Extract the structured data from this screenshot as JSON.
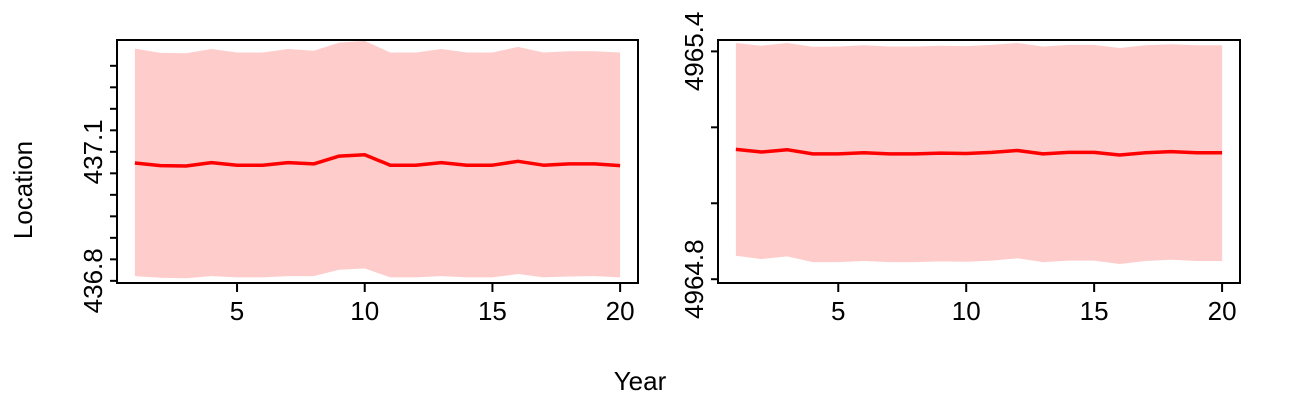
{
  "figure": {
    "xlabel": "Year",
    "ylabel": "Location"
  },
  "colors": {
    "line": "#ff0000",
    "band": "#ffcccc",
    "axis": "#000000"
  },
  "chart_data": [
    {
      "type": "line",
      "x": [
        1,
        2,
        3,
        4,
        5,
        6,
        7,
        8,
        9,
        10,
        11,
        12,
        13,
        14,
        15,
        16,
        17,
        18,
        19,
        20
      ],
      "series": [
        {
          "values": [
            437.074,
            437.068,
            437.067,
            437.075,
            437.069,
            437.069,
            437.075,
            437.072,
            437.09,
            437.093,
            437.069,
            437.069,
            437.075,
            437.069,
            437.069,
            437.078,
            437.069,
            437.072,
            437.072,
            437.068
          ],
          "lower": [
            436.811,
            436.807,
            436.806,
            436.811,
            436.808,
            436.808,
            436.811,
            436.811,
            436.826,
            436.829,
            436.808,
            436.808,
            436.811,
            436.808,
            436.808,
            436.816,
            436.808,
            436.81,
            436.811,
            436.808
          ],
          "upper": [
            437.34,
            437.33,
            437.329,
            437.339,
            437.331,
            437.331,
            437.339,
            437.335,
            437.354,
            437.358,
            437.331,
            437.331,
            437.339,
            437.331,
            437.331,
            437.344,
            437.331,
            437.334,
            437.334,
            437.331
          ]
        }
      ],
      "xticks": [
        5,
        10,
        15,
        20
      ],
      "yticks": [
        436.8,
        436.85,
        436.9,
        436.95,
        437.0,
        437.05,
        437.1,
        437.15,
        437.2,
        437.25,
        437.3
      ],
      "ytick_labels": [
        {
          "value": 436.8,
          "label": "436.8"
        },
        {
          "value": 437.1,
          "label": "437.1"
        }
      ],
      "xlim": [
        0.3,
        20.7
      ],
      "ylim": [
        436.795,
        437.36
      ],
      "grid": false
    },
    {
      "type": "line",
      "x": [
        1,
        2,
        3,
        4,
        5,
        6,
        7,
        8,
        9,
        10,
        11,
        12,
        13,
        14,
        15,
        16,
        17,
        18,
        19,
        20
      ],
      "series": [
        {
          "values": [
            4965.142,
            4965.135,
            4965.141,
            4965.13,
            4965.13,
            4965.133,
            4965.13,
            4965.13,
            4965.132,
            4965.131,
            4965.134,
            4965.139,
            4965.13,
            4965.134,
            4965.134,
            4965.127,
            4965.133,
            4965.136,
            4965.133,
            4965.133
          ],
          "lower": [
            4964.862,
            4964.853,
            4964.86,
            4964.845,
            4964.845,
            4964.848,
            4964.845,
            4964.845,
            4964.847,
            4964.846,
            4964.849,
            4964.855,
            4964.845,
            4964.849,
            4964.849,
            4964.84,
            4964.848,
            4964.851,
            4964.848,
            4964.848
          ],
          "upper": [
            4965.422,
            4965.415,
            4965.422,
            4965.412,
            4965.413,
            4965.416,
            4965.413,
            4965.413,
            4965.415,
            4965.414,
            4965.417,
            4965.422,
            4965.413,
            4965.417,
            4965.417,
            4965.409,
            4965.416,
            4965.419,
            4965.416,
            4965.416
          ]
        }
      ],
      "xticks": [
        5,
        10,
        15,
        20
      ],
      "yticks": [
        4964.8,
        4965.0,
        4965.2,
        4965.4
      ],
      "ytick_labels": [
        {
          "value": 4964.8,
          "label": "4964.8"
        },
        {
          "value": 4965.4,
          "label": "4965.4"
        }
      ],
      "xlim": [
        0.3,
        20.7
      ],
      "ylim": [
        4964.79,
        4965.43
      ],
      "grid": false
    }
  ]
}
